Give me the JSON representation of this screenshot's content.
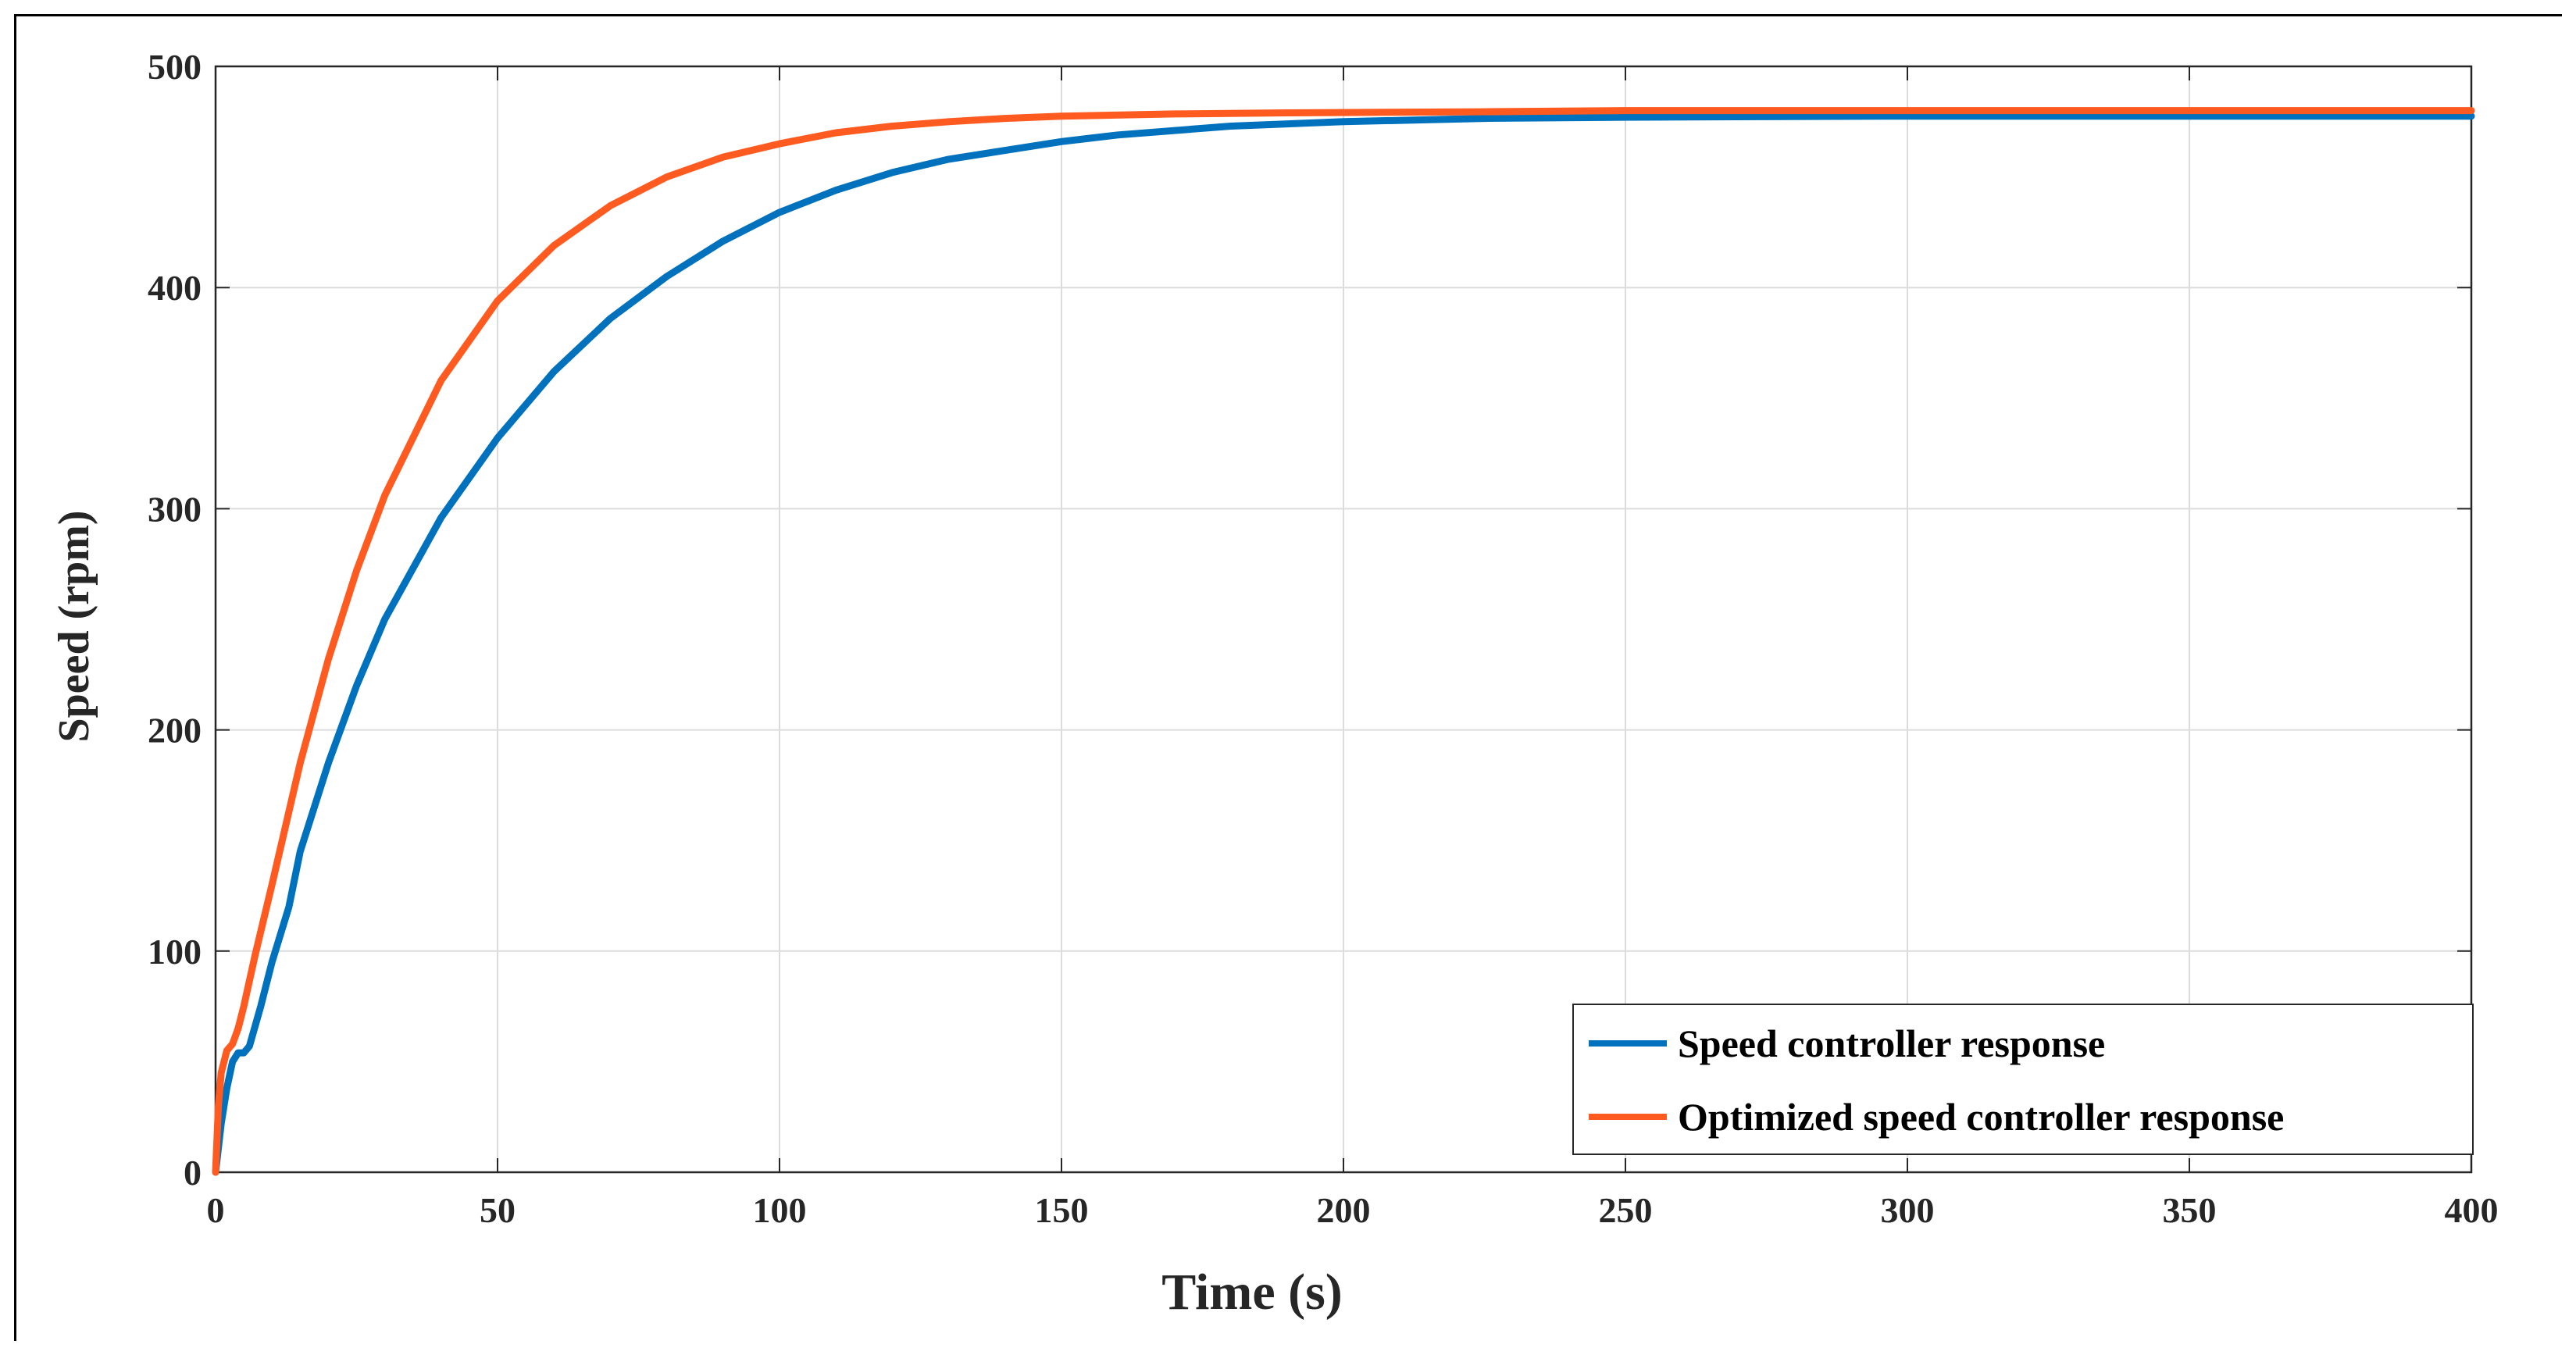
{
  "chart_data": {
    "type": "line",
    "title": "",
    "xlabel": "Time (s)",
    "ylabel": "Speed (rpm)",
    "xlim": [
      0,
      400
    ],
    "ylim": [
      0,
      500
    ],
    "xticks": [
      "0",
      "50",
      "100",
      "150",
      "200",
      "250",
      "300",
      "350",
      "400"
    ],
    "yticks": [
      "0",
      "100",
      "200",
      "300",
      "400",
      "500"
    ],
    "grid": true,
    "legend_location": "bottom-right",
    "series": [
      {
        "name": "Speed controller response",
        "color": "#0072BD",
        "x": [
          0,
          1,
          2,
          3,
          4,
          5,
          6,
          8,
          10,
          13,
          15,
          20,
          25,
          30,
          40,
          50,
          60,
          70,
          80,
          90,
          100,
          110,
          120,
          130,
          140,
          150,
          160,
          180,
          200,
          225,
          250,
          300,
          350,
          400
        ],
        "y": [
          0,
          22,
          38,
          50,
          54,
          54,
          57,
          75,
          95,
          120,
          145,
          185,
          220,
          250,
          296,
          332,
          362,
          386,
          405,
          421,
          434,
          444,
          452,
          458,
          462,
          466,
          469,
          473,
          475,
          476.5,
          477,
          477.5,
          477.5,
          477.5
        ]
      },
      {
        "name": "Optimized speed controller response",
        "color": "#FF5A1F",
        "x": [
          0,
          0.5,
          1,
          2,
          3,
          4,
          5,
          7,
          10,
          15,
          20,
          25,
          30,
          40,
          50,
          60,
          70,
          80,
          90,
          100,
          110,
          120,
          130,
          140,
          150,
          170,
          190,
          225,
          250,
          300,
          350,
          400
        ],
        "y": [
          0,
          30,
          45,
          55,
          58,
          65,
          75,
          98,
          130,
          185,
          232,
          272,
          306,
          358,
          394,
          419,
          437,
          450,
          459,
          465,
          470,
          473,
          475,
          476.5,
          477.5,
          478.5,
          479,
          479.5,
          480,
          480,
          480,
          480
        ]
      }
    ]
  }
}
